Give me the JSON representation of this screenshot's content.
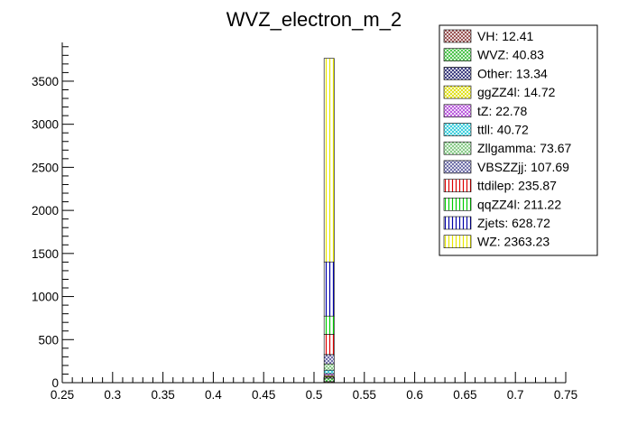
{
  "chart_data": {
    "type": "bar",
    "stacked": true,
    "title": "WVZ_electron_m_2",
    "xlabel": "",
    "ylabel": "",
    "xlim": [
      0.25,
      0.75
    ],
    "ylim": [
      0,
      3950
    ],
    "x_ticks": [
      "0.25",
      "0.3",
      "0.35",
      "0.4",
      "0.45",
      "0.5",
      "0.55",
      "0.6",
      "0.65",
      "0.7",
      "0.75"
    ],
    "y_ticks": [
      "0",
      "500",
      "1000",
      "1500",
      "2000",
      "2500",
      "3000",
      "3500"
    ],
    "bin": [
      0.51,
      0.52
    ],
    "grid": false,
    "legend_position": "top-right",
    "series": [
      {
        "name": "VH",
        "legend_label": "VH: 12.41",
        "value": 12.41,
        "color": "#8b3a3a",
        "hatch": "cross"
      },
      {
        "name": "WVZ",
        "legend_label": "WVZ: 40.83",
        "value": 40.83,
        "color": "#33bb33",
        "hatch": "cross"
      },
      {
        "name": "Other",
        "legend_label": "Other: 13.34",
        "value": 13.34,
        "color": "#22226e",
        "hatch": "cross"
      },
      {
        "name": "ggZZ4l",
        "legend_label": "ggZZ4l: 14.72",
        "value": 14.72,
        "color": "#dddd00",
        "hatch": "cross"
      },
      {
        "name": "tZ",
        "legend_label": "tZ: 22.78",
        "value": 22.78,
        "color": "#b044d8",
        "hatch": "cross"
      },
      {
        "name": "ttll",
        "legend_label": "ttll: 40.72",
        "value": 40.72,
        "color": "#22c8d8",
        "hatch": "cross"
      },
      {
        "name": "Zllgamma",
        "legend_label": "Zllgamma: 73.67",
        "value": 73.67,
        "color": "#77c477",
        "hatch": "cross"
      },
      {
        "name": "VBSZZjj",
        "legend_label": "VBSZZjj: 107.69",
        "value": 107.69,
        "color": "#5a5a9c",
        "hatch": "cross"
      },
      {
        "name": "ttdilep",
        "legend_label": "ttdilep: 235.87",
        "value": 235.87,
        "color": "#dd0000",
        "hatch": "vertical"
      },
      {
        "name": "qqZZ4l",
        "legend_label": "qqZZ4l: 211.22",
        "value": 211.22,
        "color": "#00cc00",
        "hatch": "vertical"
      },
      {
        "name": "Zjets",
        "legend_label": "Zjets: 628.72",
        "value": 628.72,
        "color": "#0000aa",
        "hatch": "vertical"
      },
      {
        "name": "WZ",
        "legend_label": "WZ: 2363.23",
        "value": 2363.23,
        "color": "#e8e800",
        "hatch": "vertical"
      }
    ]
  }
}
